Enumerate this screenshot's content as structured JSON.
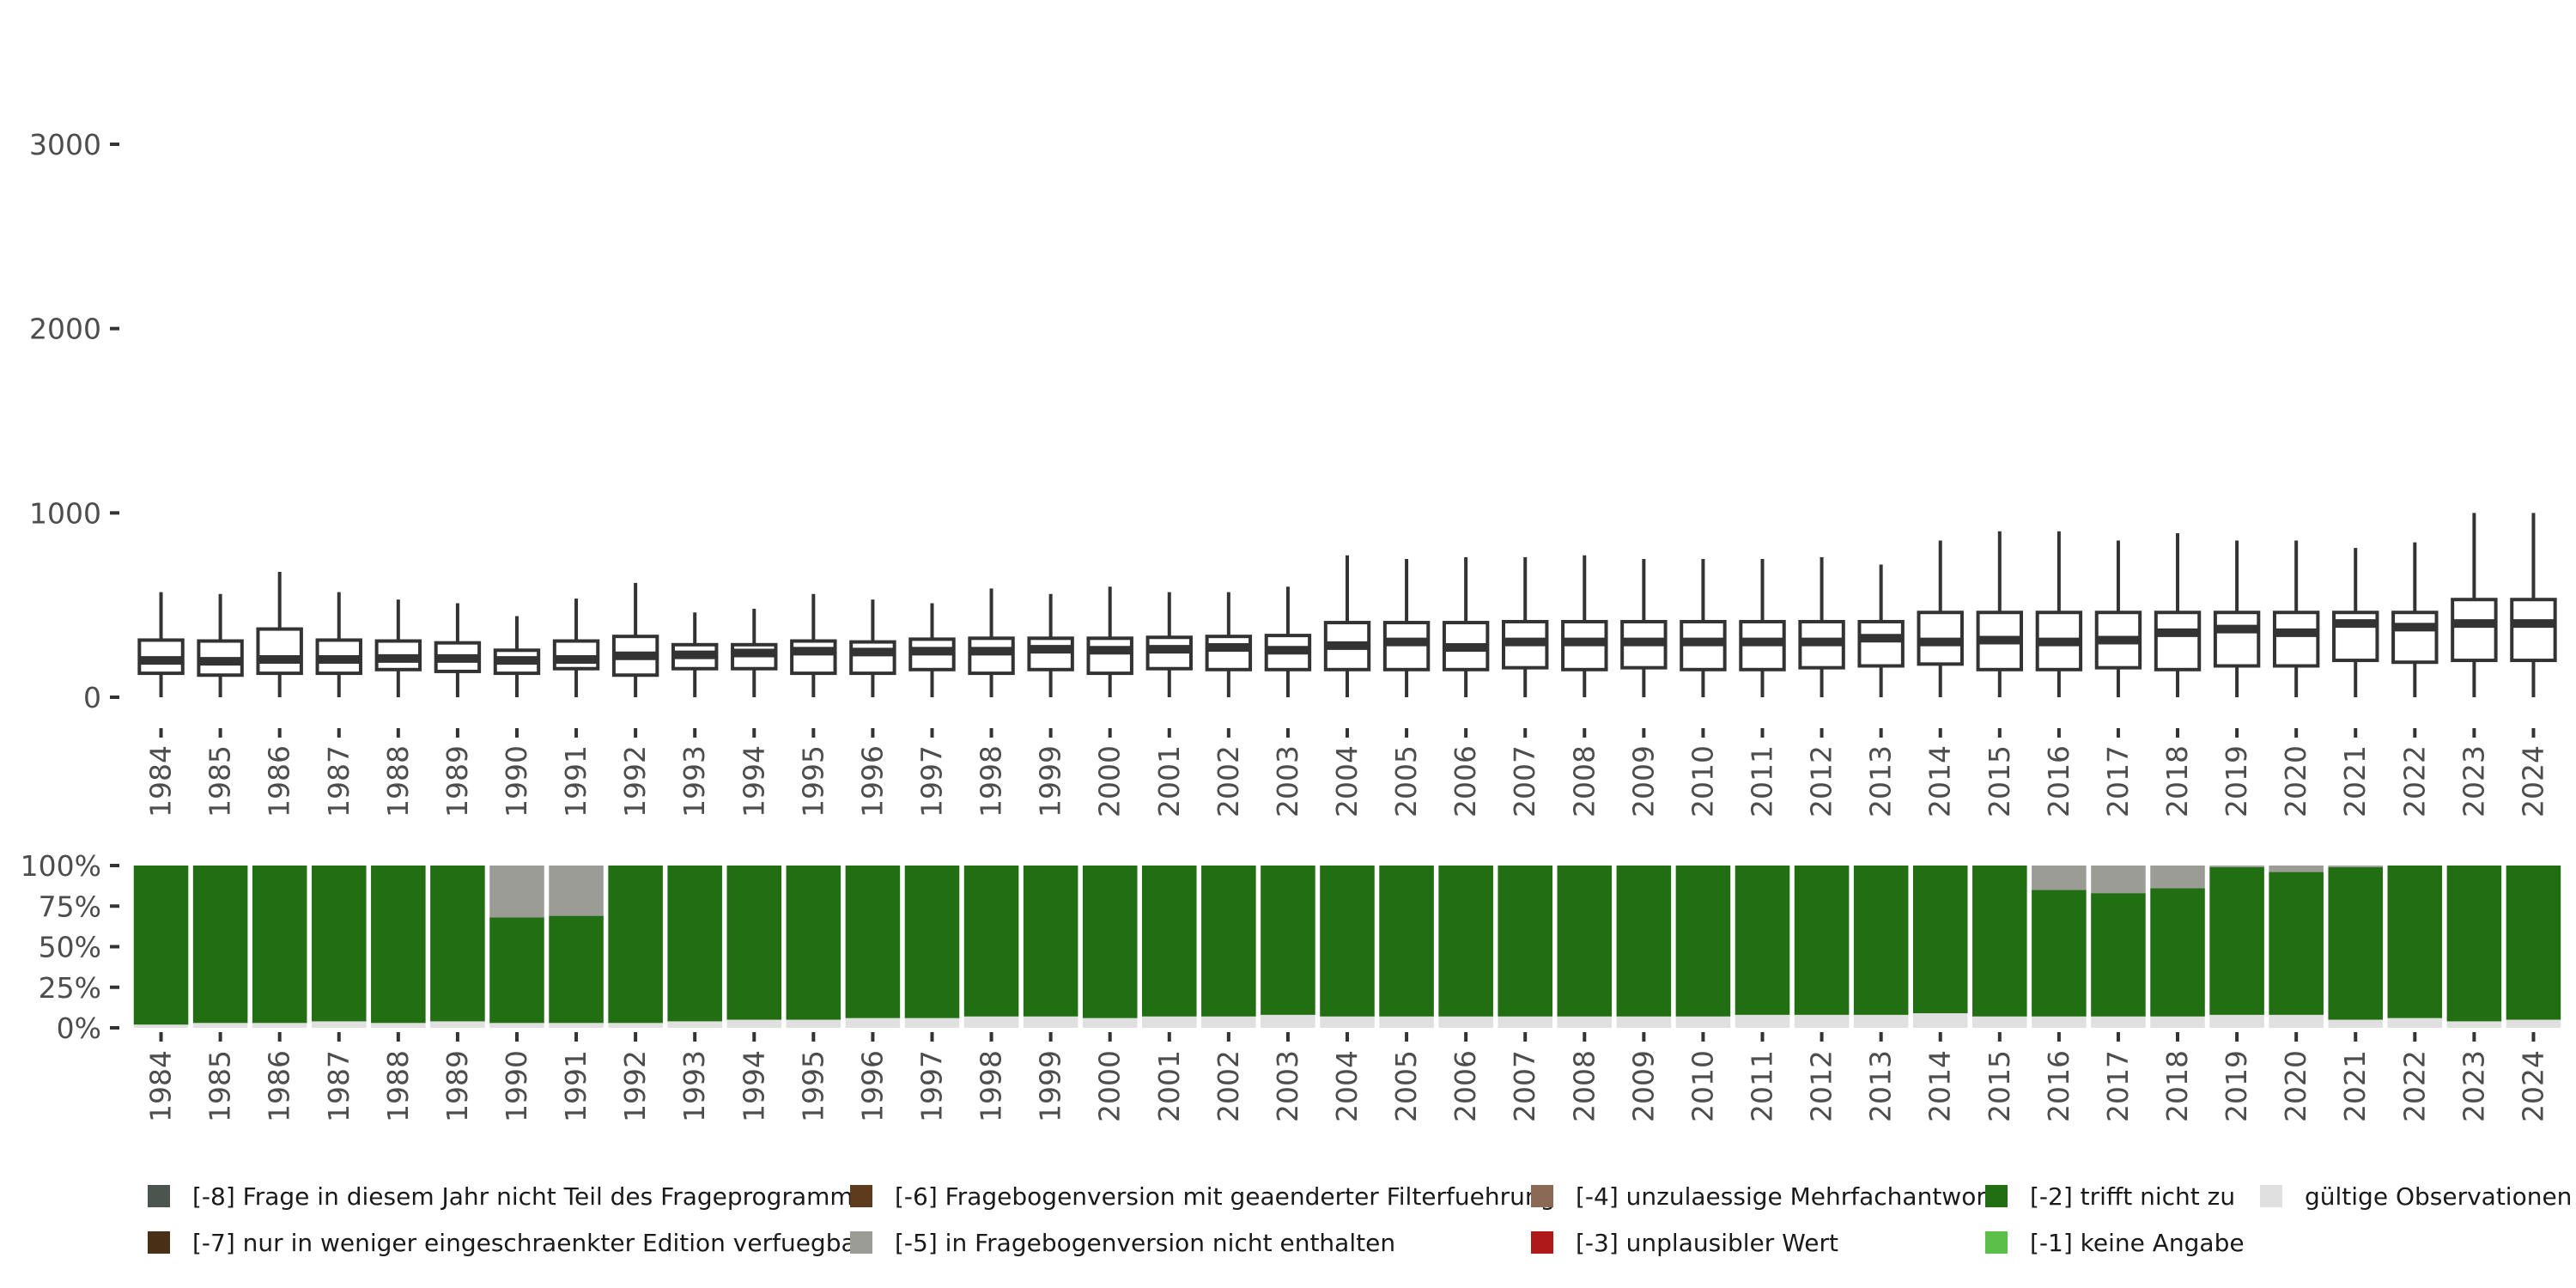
{
  "chart_data": [
    {
      "type": "boxplot",
      "title": "",
      "xlabel": "",
      "ylabel": "",
      "ylim": [
        -80,
        3600
      ],
      "yticks": [
        0,
        1000,
        2000,
        3000
      ],
      "ytick_labels": [
        "0",
        "1000",
        "2000",
        "3000"
      ],
      "box_fill": "#ffffff",
      "box_stroke": "#333333",
      "categories": [
        "1984",
        "1985",
        "1986",
        "1987",
        "1988",
        "1989",
        "1990",
        "1991",
        "1992",
        "1993",
        "1994",
        "1995",
        "1996",
        "1997",
        "1998",
        "1999",
        "2000",
        "2001",
        "2002",
        "2003",
        "2004",
        "2005",
        "2006",
        "2007",
        "2008",
        "2009",
        "2010",
        "2011",
        "2012",
        "2013",
        "2014",
        "2015",
        "2016",
        "2017",
        "2018",
        "2019",
        "2020",
        "2021",
        "2022",
        "2023",
        "2024"
      ],
      "boxes": [
        {
          "lower": 0,
          "q1": 130,
          "median": 200,
          "q3": 310,
          "upper": 570
        },
        {
          "lower": 0,
          "q1": 120,
          "median": 195,
          "q3": 305,
          "upper": 560
        },
        {
          "lower": 0,
          "q1": 130,
          "median": 205,
          "q3": 370,
          "upper": 680
        },
        {
          "lower": 0,
          "q1": 130,
          "median": 205,
          "q3": 310,
          "upper": 570
        },
        {
          "lower": 0,
          "q1": 150,
          "median": 210,
          "q3": 305,
          "upper": 530
        },
        {
          "lower": 0,
          "q1": 140,
          "median": 210,
          "q3": 295,
          "upper": 510
        },
        {
          "lower": 0,
          "q1": 130,
          "median": 200,
          "q3": 255,
          "upper": 440
        },
        {
          "lower": 0,
          "q1": 155,
          "median": 205,
          "q3": 305,
          "upper": 535
        },
        {
          "lower": 0,
          "q1": 120,
          "median": 225,
          "q3": 330,
          "upper": 620
        },
        {
          "lower": 0,
          "q1": 155,
          "median": 230,
          "q3": 285,
          "upper": 460
        },
        {
          "lower": 0,
          "q1": 155,
          "median": 240,
          "q3": 285,
          "upper": 480
        },
        {
          "lower": 0,
          "q1": 130,
          "median": 250,
          "q3": 305,
          "upper": 560
        },
        {
          "lower": 0,
          "q1": 130,
          "median": 245,
          "q3": 300,
          "upper": 530
        },
        {
          "lower": 0,
          "q1": 150,
          "median": 250,
          "q3": 315,
          "upper": 510
        },
        {
          "lower": 0,
          "q1": 130,
          "median": 250,
          "q3": 320,
          "upper": 590
        },
        {
          "lower": 0,
          "q1": 150,
          "median": 260,
          "q3": 320,
          "upper": 560
        },
        {
          "lower": 0,
          "q1": 130,
          "median": 255,
          "q3": 320,
          "upper": 600
        },
        {
          "lower": 0,
          "q1": 155,
          "median": 260,
          "q3": 325,
          "upper": 570
        },
        {
          "lower": 0,
          "q1": 150,
          "median": 270,
          "q3": 330,
          "upper": 570
        },
        {
          "lower": 0,
          "q1": 150,
          "median": 255,
          "q3": 335,
          "upper": 600
        },
        {
          "lower": 0,
          "q1": 150,
          "median": 280,
          "q3": 405,
          "upper": 770
        },
        {
          "lower": 0,
          "q1": 150,
          "median": 300,
          "q3": 405,
          "upper": 750
        },
        {
          "lower": 0,
          "q1": 150,
          "median": 270,
          "q3": 405,
          "upper": 760
        },
        {
          "lower": 0,
          "q1": 160,
          "median": 300,
          "q3": 410,
          "upper": 760
        },
        {
          "lower": 0,
          "q1": 150,
          "median": 300,
          "q3": 410,
          "upper": 770
        },
        {
          "lower": 0,
          "q1": 160,
          "median": 300,
          "q3": 410,
          "upper": 750
        },
        {
          "lower": 0,
          "q1": 150,
          "median": 300,
          "q3": 410,
          "upper": 750
        },
        {
          "lower": 0,
          "q1": 150,
          "median": 300,
          "q3": 410,
          "upper": 750
        },
        {
          "lower": 0,
          "q1": 160,
          "median": 300,
          "q3": 410,
          "upper": 760
        },
        {
          "lower": 0,
          "q1": 170,
          "median": 320,
          "q3": 410,
          "upper": 720
        },
        {
          "lower": 0,
          "q1": 180,
          "median": 300,
          "q3": 460,
          "upper": 850
        },
        {
          "lower": 0,
          "q1": 150,
          "median": 310,
          "q3": 460,
          "upper": 900
        },
        {
          "lower": 0,
          "q1": 150,
          "median": 300,
          "q3": 460,
          "upper": 900
        },
        {
          "lower": 0,
          "q1": 160,
          "median": 310,
          "q3": 460,
          "upper": 850
        },
        {
          "lower": 0,
          "q1": 150,
          "median": 350,
          "q3": 460,
          "upper": 890
        },
        {
          "lower": 0,
          "q1": 170,
          "median": 370,
          "q3": 460,
          "upper": 850
        },
        {
          "lower": 0,
          "q1": 170,
          "median": 350,
          "q3": 460,
          "upper": 850
        },
        {
          "lower": 0,
          "q1": 200,
          "median": 400,
          "q3": 460,
          "upper": 810
        },
        {
          "lower": 0,
          "q1": 190,
          "median": 380,
          "q3": 460,
          "upper": 840
        },
        {
          "lower": 0,
          "q1": 200,
          "median": 400,
          "q3": 530,
          "upper": 1000
        },
        {
          "lower": 0,
          "q1": 200,
          "median": 400,
          "q3": 530,
          "upper": 1000
        }
      ]
    },
    {
      "type": "stacked_bar",
      "title": "",
      "xlabel": "",
      "ylabel": "",
      "ylim": [
        0,
        1
      ],
      "yticks": [
        0,
        0.25,
        0.5,
        0.75,
        1
      ],
      "ytick_labels": [
        "0%",
        "25%",
        "50%",
        "75%",
        "100%"
      ],
      "categories": [
        "1984",
        "1985",
        "1986",
        "1987",
        "1988",
        "1989",
        "1990",
        "1991",
        "1992",
        "1993",
        "1994",
        "1995",
        "1996",
        "1997",
        "1998",
        "1999",
        "2000",
        "2001",
        "2002",
        "2003",
        "2004",
        "2005",
        "2006",
        "2007",
        "2008",
        "2009",
        "2010",
        "2011",
        "2012",
        "2013",
        "2014",
        "2015",
        "2016",
        "2017",
        "2018",
        "2019",
        "2020",
        "2021",
        "2022",
        "2023",
        "2024"
      ],
      "series": [
        {
          "name": "gültige Observationen",
          "color": "#e0e0e0",
          "values": [
            0.02,
            0.03,
            0.03,
            0.04,
            0.03,
            0.04,
            0.03,
            0.03,
            0.03,
            0.04,
            0.05,
            0.05,
            0.06,
            0.06,
            0.07,
            0.07,
            0.06,
            0.07,
            0.07,
            0.08,
            0.07,
            0.07,
            0.07,
            0.07,
            0.07,
            0.07,
            0.07,
            0.08,
            0.08,
            0.08,
            0.09,
            0.07,
            0.07,
            0.07,
            0.07,
            0.08,
            0.08,
            0.05,
            0.06,
            0.04,
            0.05
          ]
        },
        {
          "name": "[-2] trifft nicht zu",
          "color": "#226e12",
          "values": [
            0.98,
            0.97,
            0.97,
            0.96,
            0.97,
            0.96,
            0.65,
            0.66,
            0.97,
            0.96,
            0.95,
            0.95,
            0.94,
            0.94,
            0.93,
            0.93,
            0.94,
            0.93,
            0.93,
            0.92,
            0.93,
            0.93,
            0.93,
            0.93,
            0.93,
            0.93,
            0.93,
            0.92,
            0.92,
            0.92,
            0.91,
            0.93,
            0.78,
            0.76,
            0.79,
            0.91,
            0.88,
            0.94,
            0.94,
            0.96,
            0.95
          ]
        },
        {
          "name": "[-5] in Fragebogenversion nicht enthalten",
          "color": "#9a9c95",
          "values": [
            0,
            0,
            0,
            0,
            0,
            0,
            0.32,
            0.31,
            0,
            0,
            0,
            0,
            0,
            0,
            0,
            0,
            0,
            0,
            0,
            0,
            0,
            0,
            0,
            0,
            0,
            0,
            0,
            0,
            0,
            0,
            0,
            0,
            0.15,
            0.17,
            0.14,
            0.01,
            0.04,
            0.01,
            0,
            0,
            0
          ]
        }
      ]
    }
  ],
  "legend": [
    {
      "label": "[-8] Frage in diesem Jahr nicht Teil des Frageprogramms",
      "color": "#4b5550"
    },
    {
      "label": "[-7] nur in weniger eingeschraenkter Edition verfuegbar",
      "color": "#4a2f17"
    },
    {
      "label": "[-6] Fragebogenversion mit geaenderter Filterfuehrung",
      "color": "#5e3b1c"
    },
    {
      "label": "[-5] in Fragebogenversion nicht enthalten",
      "color": "#9a9c95"
    },
    {
      "label": "[-4] unzulaessige Mehrfachantwort",
      "color": "#8a6a55"
    },
    {
      "label": "[-3] unplausibler Wert",
      "color": "#b0191a"
    },
    {
      "label": "[-2] trifft nicht zu",
      "color": "#226e12"
    },
    {
      "label": "[-1] keine Angabe",
      "color": "#5cbf4a"
    },
    {
      "label": "gültige Observationen",
      "color": "#e0e0e0"
    }
  ]
}
